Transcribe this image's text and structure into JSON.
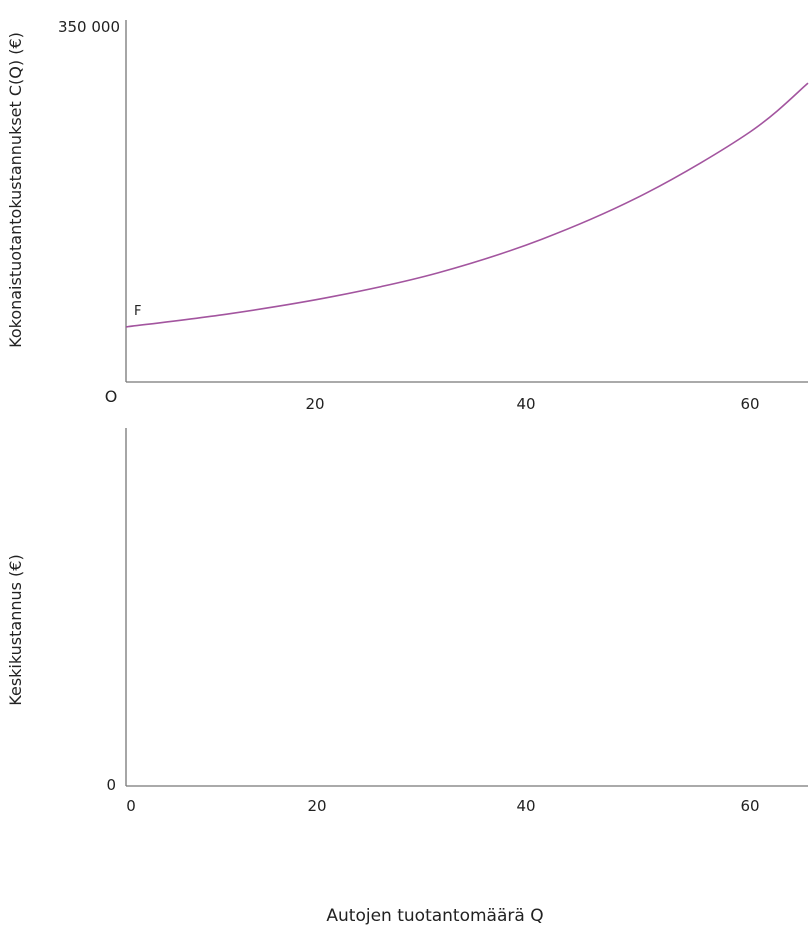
{
  "chart_data": [
    {
      "type": "line",
      "ylabel": "Kokonaistuotantokustannukset C(Q) (€)",
      "xlabel": "",
      "origin_label": "O",
      "y_tick_labels": [
        "350 000"
      ],
      "y_ticks": [
        350000
      ],
      "x_tick_labels": [
        "20",
        "40",
        "60"
      ],
      "x_ticks": [
        20,
        40,
        60
      ],
      "xlim": [
        0,
        65.6
      ],
      "ylim": [
        0,
        350000
      ],
      "grid": false,
      "annotation": "F",
      "series": [
        {
          "color": "#a3559f",
          "x": [
            0,
            10,
            20,
            30,
            40,
            50,
            60,
            65.6
          ],
          "y": [
            54000,
            67000,
            84000,
            107000,
            140000,
            185000,
            245000,
            293000
          ]
        }
      ]
    },
    {
      "type": "line",
      "ylabel": "Keskikustannus (€)",
      "xlabel": "Autojen tuotantomäärä Q",
      "y_tick_labels": [
        "0"
      ],
      "y_ticks": [
        0
      ],
      "x_tick_labels": [
        "0",
        "20",
        "40",
        "60"
      ],
      "x_ticks": [
        0,
        20,
        40,
        60
      ],
      "xlim": [
        0,
        65.6
      ],
      "grid": false,
      "series": []
    }
  ]
}
